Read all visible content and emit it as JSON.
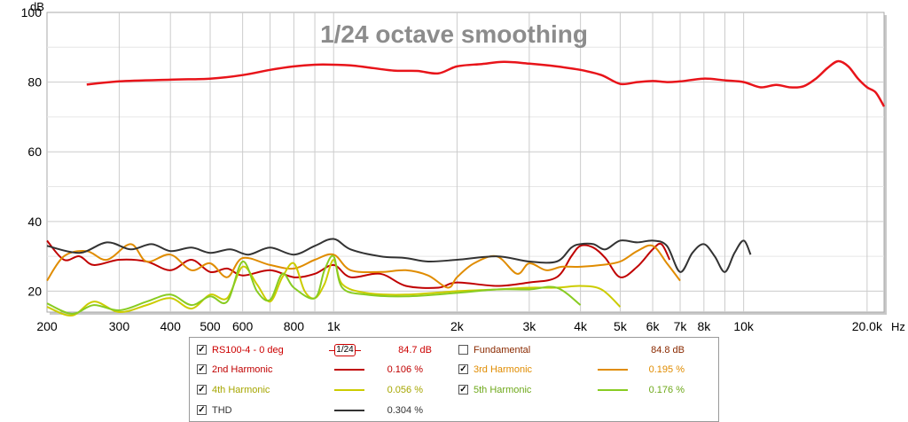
{
  "chart_data": {
    "type": "line",
    "title": "1/24 octave smoothing",
    "ylabel": "dB",
    "xunit": "Hz",
    "xscale": "log",
    "xlim": [
      200,
      22000
    ],
    "ylim": [
      14,
      100
    ],
    "grid": true,
    "yticks": [
      "100",
      "80",
      "60",
      "40",
      "20"
    ],
    "ytick_values": [
      100,
      80,
      60,
      40,
      20
    ],
    "xticks": [
      "200",
      "300",
      "400",
      "500",
      "600",
      "800",
      "1k",
      "2k",
      "3k",
      "4k",
      "5k",
      "6k",
      "7k",
      "8k",
      "10k",
      "20.0k"
    ],
    "xtick_values": [
      200,
      300,
      400,
      500,
      600,
      800,
      1000,
      2000,
      3000,
      4000,
      5000,
      6000,
      7000,
      8000,
      10000,
      20000
    ],
    "series": [
      {
        "name": "RS100-4 - 0 deg",
        "color": "#e8141a",
        "points": [
          [
            250,
            79.3
          ],
          [
            300,
            80.2
          ],
          [
            400,
            80.7
          ],
          [
            500,
            81.0
          ],
          [
            600,
            82.0
          ],
          [
            700,
            83.5
          ],
          [
            800,
            84.5
          ],
          [
            900,
            85.0
          ],
          [
            1000,
            85.0
          ],
          [
            1100,
            84.8
          ],
          [
            1200,
            84.3
          ],
          [
            1400,
            83.3
          ],
          [
            1600,
            83.2
          ],
          [
            1800,
            82.5
          ],
          [
            2000,
            84.5
          ],
          [
            2300,
            85.2
          ],
          [
            2600,
            85.8
          ],
          [
            3000,
            85.3
          ],
          [
            3500,
            84.5
          ],
          [
            4000,
            83.5
          ],
          [
            4500,
            82.0
          ],
          [
            5000,
            79.5
          ],
          [
            5500,
            80.0
          ],
          [
            6000,
            80.3
          ],
          [
            6500,
            80.0
          ],
          [
            7000,
            80.2
          ],
          [
            8000,
            81.0
          ],
          [
            9000,
            80.5
          ],
          [
            10000,
            80.0
          ],
          [
            11000,
            78.5
          ],
          [
            12000,
            79.2
          ],
          [
            13000,
            78.5
          ],
          [
            14000,
            78.8
          ],
          [
            15000,
            81.0
          ],
          [
            16000,
            84.0
          ],
          [
            17000,
            86.0
          ],
          [
            18000,
            84.5
          ],
          [
            19000,
            81.0
          ],
          [
            20000,
            78.5
          ],
          [
            21000,
            77.0
          ],
          [
            22000,
            73.0
          ]
        ]
      },
      {
        "name": "2nd Harmonic",
        "color": "#c00000",
        "points": [
          [
            200,
            34.5
          ],
          [
            220,
            29.0
          ],
          [
            240,
            30.0
          ],
          [
            260,
            27.5
          ],
          [
            300,
            29.0
          ],
          [
            350,
            28.5
          ],
          [
            400,
            26.0
          ],
          [
            450,
            29.0
          ],
          [
            500,
            25.5
          ],
          [
            550,
            26.5
          ],
          [
            600,
            24.5
          ],
          [
            700,
            26.0
          ],
          [
            800,
            24.0
          ],
          [
            900,
            25.0
          ],
          [
            1000,
            27.5
          ],
          [
            1100,
            24.0
          ],
          [
            1300,
            25.0
          ],
          [
            1500,
            21.5
          ],
          [
            1800,
            21.0
          ],
          [
            2000,
            22.5
          ],
          [
            2500,
            21.5
          ],
          [
            3000,
            22.5
          ],
          [
            3500,
            24.0
          ],
          [
            3800,
            30.0
          ],
          [
            4000,
            33.0
          ],
          [
            4300,
            32.5
          ],
          [
            4600,
            29.5
          ],
          [
            5000,
            24.0
          ],
          [
            5500,
            27.0
          ],
          [
            6000,
            32.0
          ],
          [
            6300,
            33.5
          ],
          [
            6600,
            29.0
          ]
        ]
      },
      {
        "name": "3rd Harmonic",
        "color": "#e08c00",
        "points": [
          [
            200,
            23.0
          ],
          [
            220,
            30.0
          ],
          [
            250,
            31.5
          ],
          [
            280,
            29.0
          ],
          [
            320,
            33.5
          ],
          [
            350,
            28.5
          ],
          [
            400,
            30.5
          ],
          [
            450,
            26.0
          ],
          [
            500,
            28.0
          ],
          [
            550,
            24.0
          ],
          [
            600,
            29.5
          ],
          [
            700,
            27.5
          ],
          [
            800,
            26.5
          ],
          [
            900,
            29.0
          ],
          [
            1000,
            30.5
          ],
          [
            1100,
            26.0
          ],
          [
            1300,
            25.5
          ],
          [
            1500,
            26.0
          ],
          [
            1700,
            24.5
          ],
          [
            1900,
            21.0
          ],
          [
            2000,
            24.0
          ],
          [
            2200,
            28.0
          ],
          [
            2500,
            30.0
          ],
          [
            2800,
            25.0
          ],
          [
            3000,
            28.0
          ],
          [
            3300,
            26.0
          ],
          [
            3600,
            27.0
          ],
          [
            4000,
            27.0
          ],
          [
            4500,
            27.5
          ],
          [
            5000,
            28.5
          ],
          [
            5500,
            31.5
          ],
          [
            6000,
            33.0
          ],
          [
            6500,
            28.0
          ],
          [
            7000,
            23.0
          ]
        ]
      },
      {
        "name": "4th Harmonic",
        "color": "#cccc00",
        "points": [
          [
            200,
            15.5
          ],
          [
            230,
            13.0
          ],
          [
            260,
            17.0
          ],
          [
            300,
            14.0
          ],
          [
            350,
            16.0
          ],
          [
            400,
            18.0
          ],
          [
            450,
            15.0
          ],
          [
            500,
            19.0
          ],
          [
            550,
            18.0
          ],
          [
            600,
            27.0
          ],
          [
            650,
            22.0
          ],
          [
            700,
            17.0
          ],
          [
            750,
            24.0
          ],
          [
            800,
            28.0
          ],
          [
            850,
            20.0
          ],
          [
            900,
            18.0
          ],
          [
            950,
            22.0
          ],
          [
            1000,
            29.0
          ],
          [
            1050,
            22.0
          ],
          [
            1200,
            19.5
          ],
          [
            1500,
            19.0
          ],
          [
            2000,
            20.0
          ],
          [
            2500,
            20.5
          ],
          [
            3000,
            21.0
          ],
          [
            3500,
            21.0
          ],
          [
            4000,
            21.5
          ],
          [
            4500,
            20.5
          ],
          [
            5000,
            15.5
          ]
        ]
      },
      {
        "name": "5th Harmonic",
        "color": "#88cc22",
        "points": [
          [
            200,
            16.5
          ],
          [
            230,
            13.5
          ],
          [
            260,
            16.0
          ],
          [
            300,
            14.5
          ],
          [
            350,
            17.0
          ],
          [
            400,
            19.0
          ],
          [
            450,
            16.0
          ],
          [
            500,
            18.5
          ],
          [
            550,
            17.0
          ],
          [
            600,
            28.5
          ],
          [
            650,
            20.0
          ],
          [
            700,
            17.5
          ],
          [
            750,
            25.0
          ],
          [
            800,
            21.0
          ],
          [
            900,
            18.0
          ],
          [
            950,
            26.0
          ],
          [
            1000,
            30.0
          ],
          [
            1050,
            21.0
          ],
          [
            1200,
            19.0
          ],
          [
            1500,
            18.5
          ],
          [
            2000,
            19.5
          ],
          [
            2500,
            20.5
          ],
          [
            3000,
            20.5
          ],
          [
            3500,
            21.0
          ],
          [
            4000,
            16.0
          ]
        ]
      },
      {
        "name": "THD",
        "color": "#333333",
        "points": [
          [
            200,
            33.0
          ],
          [
            240,
            31.0
          ],
          [
            280,
            34.0
          ],
          [
            320,
            32.0
          ],
          [
            360,
            33.5
          ],
          [
            400,
            31.5
          ],
          [
            450,
            32.5
          ],
          [
            500,
            31.0
          ],
          [
            560,
            32.0
          ],
          [
            620,
            30.5
          ],
          [
            700,
            32.5
          ],
          [
            800,
            30.5
          ],
          [
            900,
            33.0
          ],
          [
            1000,
            35.0
          ],
          [
            1100,
            32.0
          ],
          [
            1300,
            30.0
          ],
          [
            1500,
            29.5
          ],
          [
            1700,
            28.5
          ],
          [
            2000,
            29.0
          ],
          [
            2500,
            30.0
          ],
          [
            3000,
            28.5
          ],
          [
            3500,
            28.5
          ],
          [
            3800,
            32.5
          ],
          [
            4000,
            33.5
          ],
          [
            4300,
            33.5
          ],
          [
            4600,
            32.0
          ],
          [
            5000,
            34.5
          ],
          [
            5500,
            34.0
          ],
          [
            6000,
            34.5
          ],
          [
            6500,
            33.0
          ],
          [
            7000,
            25.5
          ],
          [
            7500,
            31.0
          ],
          [
            8000,
            33.5
          ],
          [
            8500,
            30.0
          ],
          [
            9000,
            25.5
          ],
          [
            9500,
            31.0
          ],
          [
            10000,
            34.5
          ],
          [
            10400,
            30.5
          ]
        ]
      }
    ]
  },
  "legend": {
    "items": [
      {
        "label": "RS100-4 - 0 deg",
        "checked": true,
        "value": "84.7 dB",
        "color": "#cc0000",
        "smoothing": "1/24"
      },
      {
        "label": "Fundamental",
        "checked": false,
        "value": "84.8 dB",
        "color": "#cc0000"
      },
      {
        "label": "2nd Harmonic",
        "checked": true,
        "value": "0.106 %",
        "color": "#c00000"
      },
      {
        "label": "3rd Harmonic",
        "checked": true,
        "value": "0.195 %",
        "color": "#e08c00"
      },
      {
        "label": "4th Harmonic",
        "checked": true,
        "value": "0.056 %",
        "color": "#cccc00"
      },
      {
        "label": "5th Harmonic",
        "checked": true,
        "value": "0.176 %",
        "color": "#88cc22"
      },
      {
        "label": "THD",
        "checked": true,
        "value": "0.304 %",
        "color": "#333333"
      }
    ]
  }
}
